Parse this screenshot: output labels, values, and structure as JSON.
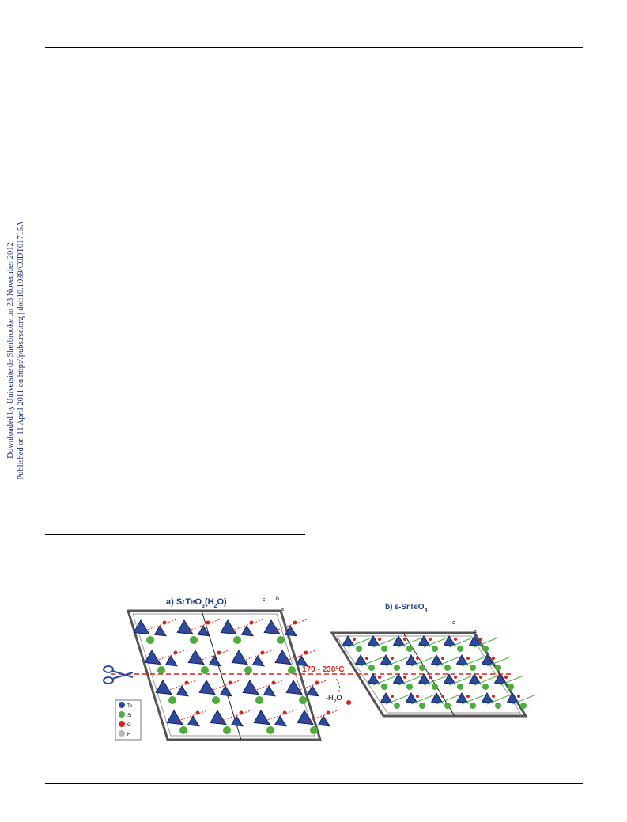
{
  "side_note": {
    "downloaded": "Downloaded by Universite de Sherbrooke on 23 November 2012",
    "published": "Published on 11 April 2011 on http://pubs.rsc.org | doi:10.1039/C0DT01715A"
  },
  "figure": {
    "panel_a": [
      {
        "t": "a) SrTeO"
      },
      {
        "t": "3",
        "sub": true
      },
      {
        "t": "(H"
      },
      {
        "t": "2",
        "sub": true
      },
      {
        "t": "O)"
      }
    ],
    "panel_b": [
      {
        "t": "b) ε-SrTeO"
      },
      {
        "t": "3",
        "sub": true
      }
    ],
    "temperature": "170 - 230°C",
    "water": [
      {
        "t": "-H"
      },
      {
        "t": "2",
        "sub": true
      },
      {
        "t": "O"
      }
    ],
    "axes_a": {
      "c": "c",
      "b": "b",
      "a": "a"
    },
    "axes_b": {
      "c": "c",
      "a": "a"
    },
    "legend": [
      {
        "label": "Te",
        "color": "#2b4aa0"
      },
      {
        "label": "Sr",
        "color": "#4caf3a"
      },
      {
        "label": "O",
        "color": "#e0201a"
      },
      {
        "label": "H",
        "color": "#b5b5b5"
      }
    ]
  }
}
